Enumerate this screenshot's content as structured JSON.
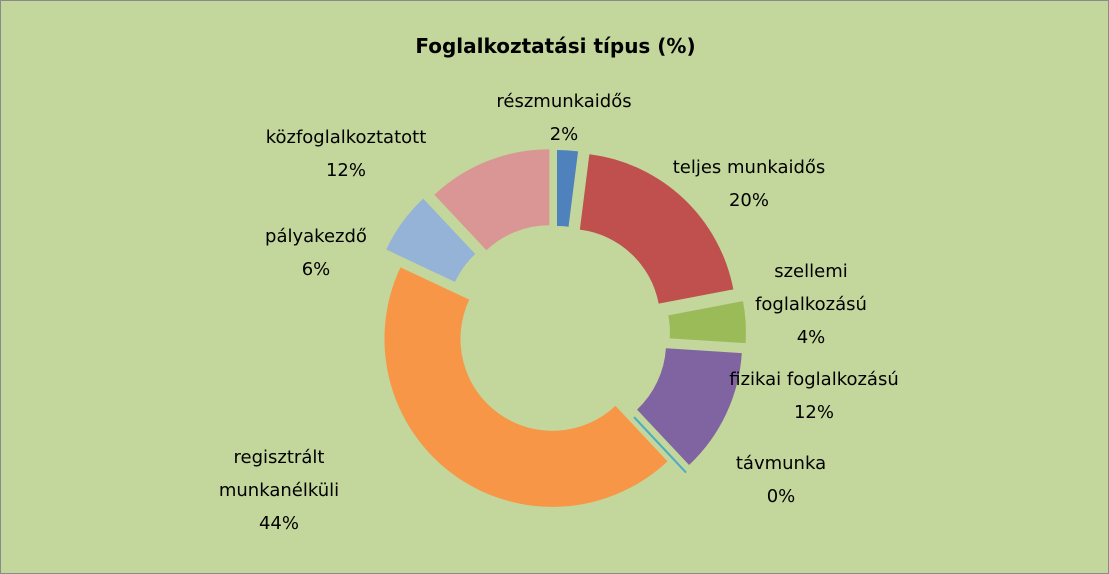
{
  "chart_data": {
    "type": "donut",
    "title": "Foglalkoztatási típus (%)",
    "categories": [
      "részmunkaidős",
      "teljes munkaidős",
      "szellemi foglalkozású",
      "fizikai foglalkozású",
      "távmunka",
      "regisztrált munkanélküli",
      "pályakezdő",
      "közfoglalkoztatott"
    ],
    "values": [
      2,
      20,
      4,
      12,
      0,
      44,
      6,
      12
    ],
    "value_labels": [
      "2%",
      "20%",
      "4%",
      "12%",
      "0%",
      "44%",
      "6%",
      "12%"
    ],
    "colors": [
      "#4f81bd",
      "#c0504d",
      "#9bbb59",
      "#8064a2",
      "#4bacc6",
      "#f79646",
      "#95b3d7",
      "#d99694"
    ]
  }
}
